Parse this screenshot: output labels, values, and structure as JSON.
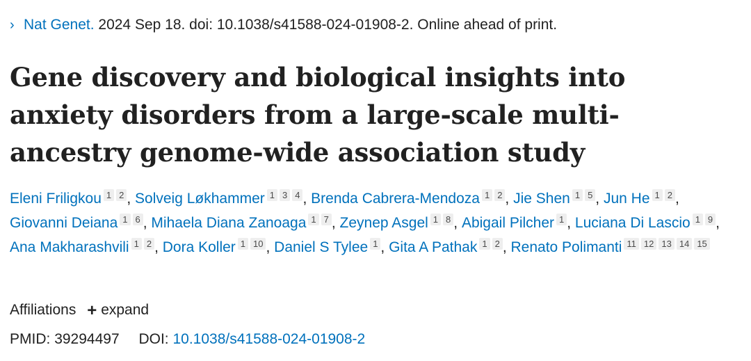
{
  "citation": {
    "chevron_icon": "chevron-right-icon",
    "journal": "Nat Genet.",
    "details": " 2024 Sep 18. doi: 10.1038/s41588-024-01908-2. Online ahead of print."
  },
  "title": "Gene discovery and biological insights into anxiety disorders from a large-scale multi-ancestry genome-wide association study",
  "authors": [
    {
      "name": "Eleni Friligkou",
      "affs": [
        "1",
        "2"
      ]
    },
    {
      "name": "Solveig Løkhammer",
      "affs": [
        "1",
        "3",
        "4"
      ]
    },
    {
      "name": "Brenda Cabrera-Mendoza",
      "affs": [
        "1",
        "2"
      ]
    },
    {
      "name": "Jie Shen",
      "affs": [
        "1",
        "5"
      ]
    },
    {
      "name": "Jun He",
      "affs": [
        "1",
        "2"
      ]
    },
    {
      "name": "Giovanni Deiana",
      "affs": [
        "1",
        "6"
      ]
    },
    {
      "name": "Mihaela Diana Zanoaga",
      "affs": [
        "1",
        "7"
      ]
    },
    {
      "name": "Zeynep Asgel",
      "affs": [
        "1",
        "8"
      ]
    },
    {
      "name": "Abigail Pilcher",
      "affs": [
        "1"
      ]
    },
    {
      "name": "Luciana Di Lascio",
      "affs": [
        "1",
        "9"
      ]
    },
    {
      "name": "Ana Makharashvili",
      "affs": [
        "1",
        "2"
      ]
    },
    {
      "name": "Dora Koller",
      "affs": [
        "1",
        "10"
      ]
    },
    {
      "name": "Daniel S Tylee",
      "affs": [
        "1"
      ]
    },
    {
      "name": "Gita A Pathak",
      "affs": [
        "1",
        "2"
      ]
    },
    {
      "name": "Renato Polimanti",
      "affs": [
        "11",
        "12",
        "13",
        "14",
        "15"
      ]
    }
  ],
  "affiliations": {
    "label": "Affiliations",
    "expand_icon": "plus-icon",
    "expand_label": "expand"
  },
  "ids": {
    "pmid_label": "PMID:",
    "pmid": "39294497",
    "doi_label": "DOI:",
    "doi": "10.1038/s41588-024-01908-2"
  },
  "colors": {
    "link": "#0071bc",
    "text": "#212121",
    "badge_bg": "#eeeeee"
  }
}
